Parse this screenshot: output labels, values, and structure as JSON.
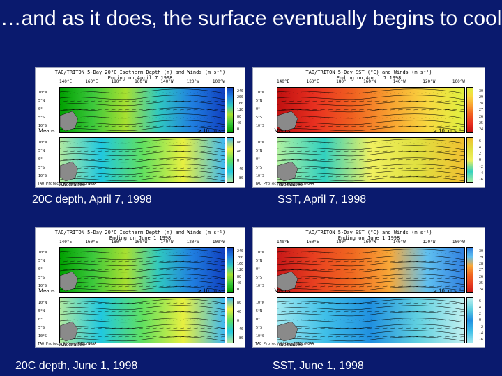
{
  "slide": {
    "title": "…and as it does, the surface eventually begins to cool"
  },
  "panels": [
    {
      "id": "p1",
      "title": "TAO/TRITON 5-Day 20°C Isotherm Depth (m) and Winds (m s⁻¹)",
      "subtitle": "Ending on April 7 1998",
      "caption": "20C depth, April 7, 1998",
      "means_label": "Means",
      "anom_label": "Anomalies",
      "scale_label": "> 10. m s⁻¹",
      "credit": "TAO Project Office/PMEL/NOAA",
      "lon": [
        "140°E",
        "160°E",
        "180°",
        "160°W",
        "140°W",
        "120°W",
        "100°W"
      ],
      "lat": [
        "10°N",
        "5°N",
        "0°",
        "5°S",
        "10°S"
      ],
      "cb_top": [
        "240",
        "200",
        "160",
        "120",
        "80",
        "40",
        "0"
      ],
      "cb_bot": [
        "80",
        "40",
        "0",
        "-40",
        "-80"
      ],
      "palette": "depth"
    },
    {
      "id": "p2",
      "title": "TAO/TRITON 5-Day SST (°C) and Winds (m s⁻¹)",
      "subtitle": "Ending on April 7 1998",
      "caption": "SST, April 7, 1998",
      "means_label": "Means",
      "anom_label": "Anomalies",
      "scale_label": "> 10. m s⁻¹",
      "credit": "TAO Project Office/PMEL/NOAA",
      "lon": [
        "140°E",
        "160°E",
        "180°",
        "160°W",
        "140°W",
        "120°W",
        "100°W"
      ],
      "lat": [
        "10°N",
        "5°N",
        "0°",
        "5°S",
        "10°S"
      ],
      "cb_top": [
        "30",
        "29",
        "28",
        "27",
        "26",
        "25",
        "24"
      ],
      "cb_bot": [
        "6",
        "4",
        "2",
        "0",
        "-2",
        "-4",
        "-6"
      ],
      "palette": "sst_apr"
    },
    {
      "id": "p3",
      "title": "TAO/TRITON 5-Day 20°C Isotherm Depth (m) and Winds (m s⁻¹)",
      "subtitle": "Ending on June 1 1998",
      "caption": "20C depth, June 1, 1998",
      "means_label": "Means",
      "anom_label": "Anomalies",
      "scale_label": "> 10. m s⁻¹",
      "credit": "TAO Project Office/PMEL/NOAA",
      "lon": [
        "140°E",
        "160°E",
        "180°",
        "160°W",
        "140°W",
        "120°W",
        "100°W"
      ],
      "lat": [
        "10°N",
        "5°N",
        "0°",
        "5°S",
        "10°S"
      ],
      "cb_top": [
        "240",
        "200",
        "160",
        "120",
        "80",
        "40",
        "0"
      ],
      "cb_bot": [
        "80",
        "40",
        "0",
        "-40",
        "-80"
      ],
      "palette": "depth"
    },
    {
      "id": "p4",
      "title": "TAO/TRITON 5-Day SST (°C) and Winds (m s⁻¹)",
      "subtitle": "Ending on June 1 1998",
      "caption": "SST, June 1, 1998",
      "means_label": "Means",
      "anom_label": "Anomalies",
      "scale_label": "> 10. m s⁻¹",
      "credit": "TAO Project Office/PMEL/NOAA",
      "lon": [
        "140°E",
        "160°E",
        "180°",
        "160°W",
        "140°W",
        "120°W",
        "100°W"
      ],
      "lat": [
        "10°N",
        "5°N",
        "0°",
        "5°S",
        "10°S"
      ],
      "cb_top": [
        "30",
        "29",
        "28",
        "27",
        "26",
        "25",
        "24"
      ],
      "cb_bot": [
        "6",
        "4",
        "2",
        "0",
        "-2",
        "-4",
        "-6"
      ],
      "palette": "sst_jun"
    }
  ],
  "colors": {
    "background": "#0a1a6e",
    "depth_means": [
      "#00a000",
      "#3cc83c",
      "#a8e030",
      "#30c8c0",
      "#2080e0",
      "#1040c0"
    ],
    "depth_anom": [
      "#b0e8a0",
      "#20c8e0",
      "#60e060",
      "#e8f040",
      "#40b8f0"
    ],
    "sst_apr_means": [
      "#c01010",
      "#e83020",
      "#f06020",
      "#f8a030",
      "#f8d840",
      "#e0f040"
    ],
    "sst_apr_anom": [
      "#b0f0a0",
      "#30d0c0",
      "#f0f060",
      "#e0e040",
      "#f0c030"
    ],
    "sst_jun_means": [
      "#c81818",
      "#e84020",
      "#f06820",
      "#f8a838",
      "#60c0f0",
      "#3080e0"
    ],
    "sst_jun_anom": [
      "#a0e8f0",
      "#40c0e8",
      "#2090e0",
      "#60d0e0",
      "#c0f0f0"
    ]
  }
}
